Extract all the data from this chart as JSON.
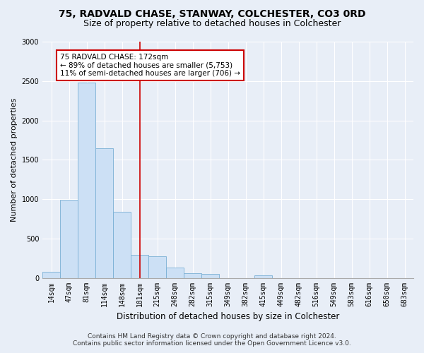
{
  "title1": "75, RADVALD CHASE, STANWAY, COLCHESTER, CO3 0RD",
  "title2": "Size of property relative to detached houses in Colchester",
  "xlabel": "Distribution of detached houses by size in Colchester",
  "ylabel": "Number of detached properties",
  "footer1": "Contains HM Land Registry data © Crown copyright and database right 2024.",
  "footer2": "Contains public sector information licensed under the Open Government Licence v3.0.",
  "categories": [
    "14sqm",
    "47sqm",
    "81sqm",
    "114sqm",
    "148sqm",
    "181sqm",
    "215sqm",
    "248sqm",
    "282sqm",
    "315sqm",
    "349sqm",
    "382sqm",
    "415sqm",
    "449sqm",
    "482sqm",
    "516sqm",
    "549sqm",
    "583sqm",
    "616sqm",
    "650sqm",
    "683sqm"
  ],
  "values": [
    75,
    990,
    2480,
    1650,
    840,
    290,
    270,
    130,
    60,
    50,
    0,
    0,
    30,
    0,
    0,
    0,
    0,
    0,
    0,
    0,
    0
  ],
  "bar_color": "#cce0f5",
  "bar_edge_color": "#7ab0d4",
  "vline_x": 5.0,
  "vline_color": "#cc0000",
  "annotation_text": "75 RADVALD CHASE: 172sqm\n← 89% of detached houses are smaller (5,753)\n11% of semi-detached houses are larger (706) →",
  "annotation_box_color": "white",
  "annotation_box_edge": "#cc0000",
  "ylim": [
    0,
    3000
  ],
  "yticks": [
    0,
    500,
    1000,
    1500,
    2000,
    2500,
    3000
  ],
  "background_color": "#e8eef7",
  "grid_color": "#ffffff",
  "title1_fontsize": 10,
  "title2_fontsize": 9,
  "xlabel_fontsize": 8.5,
  "ylabel_fontsize": 8,
  "tick_fontsize": 7,
  "footer_fontsize": 6.5,
  "ann_fontsize": 7.5
}
